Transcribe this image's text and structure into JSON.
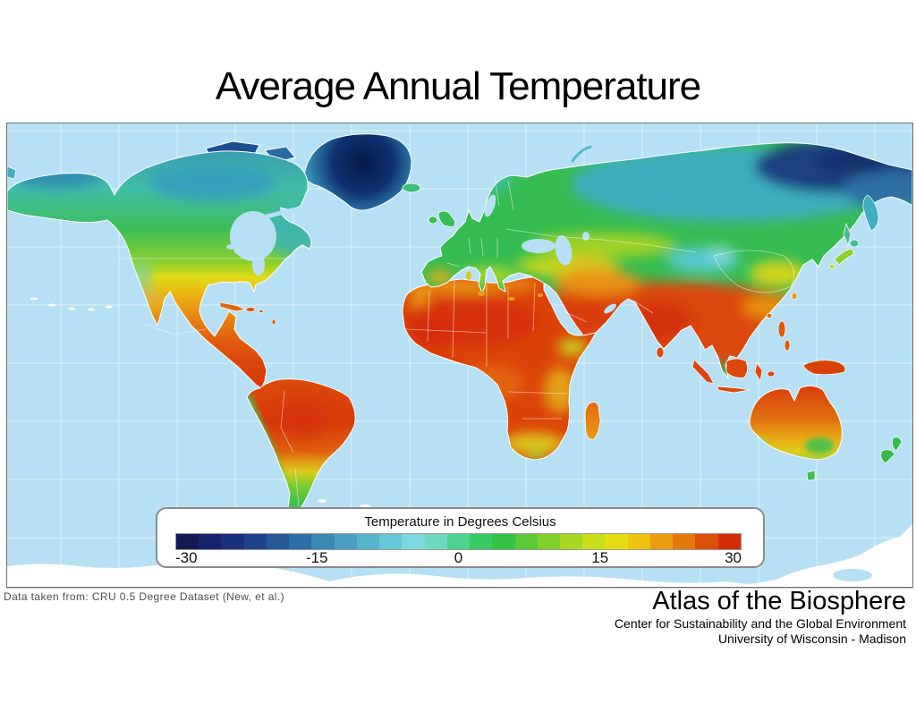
{
  "page": {
    "title": "Average Annual Temperature"
  },
  "map": {
    "description": "World map of average annual temperature",
    "ocean_color": "#B7E0F4",
    "grid_color": "#FFFFFF"
  },
  "legend": {
    "title": "Temperature in Degrees Celsius",
    "ticks": [
      "-30",
      "-15",
      "0",
      "15",
      "30"
    ],
    "colors": [
      "#111A54",
      "#16246B",
      "#1A307C",
      "#1E428A",
      "#265897",
      "#2E6FA5",
      "#3A88B4",
      "#4AA0C2",
      "#55B5CD",
      "#66C9D7",
      "#7CD8DD",
      "#6ED9C0",
      "#4ED28E",
      "#3AC963",
      "#36C246",
      "#5CC938",
      "#80D02C",
      "#A6D723",
      "#CADD1A",
      "#E5DC14",
      "#EEC411",
      "#EA9E0F",
      "#E4780C",
      "#DC4F09",
      "#D32D06"
    ]
  },
  "source_note": "Data taken from: CRU 0.5 Degree Dataset (New, et al.)",
  "credit": {
    "title": "Atlas of the Biosphere",
    "subtitle1": "Center for Sustainability and the Global Environment",
    "subtitle2": "University of Wisconsin - Madison"
  }
}
